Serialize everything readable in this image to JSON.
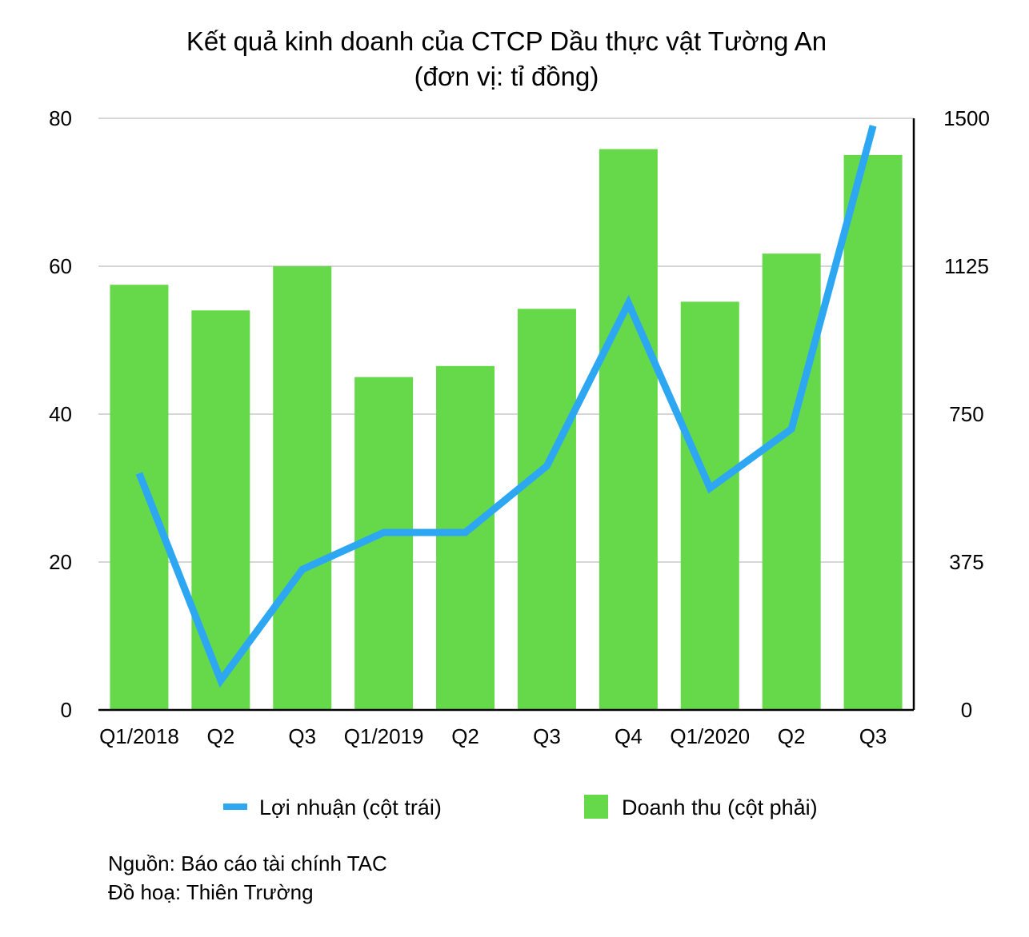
{
  "chart_data": {
    "type": "bar+line",
    "title": "Kết quả kinh doanh của CTCP Dầu thực vật Tường An",
    "subtitle": "(đơn vị: tỉ đồng)",
    "categories": [
      "Q1/2018",
      "Q2",
      "Q3",
      "Q1/2019",
      "Q2",
      "Q3",
      "Q4",
      "Q1/2020",
      "Q2",
      "Q3"
    ],
    "series": [
      {
        "name": "Lợi nhuận (cột trái)",
        "kind": "line",
        "axis": "left",
        "color": "#2ea7f2",
        "values": [
          32,
          4,
          19,
          24,
          24,
          33,
          55,
          30,
          38,
          79
        ]
      },
      {
        "name": "Doanh thu (cột phải)",
        "kind": "bar",
        "axis": "right",
        "color": "#66d94a",
        "values": [
          1078,
          1013,
          1125,
          844,
          872,
          1017,
          1422,
          1035,
          1157,
          1407
        ]
      }
    ],
    "left_axis": {
      "ylim": [
        0,
        80
      ],
      "ticks": [
        "0",
        "20",
        "40",
        "60",
        "80"
      ]
    },
    "right_axis": {
      "ylim": [
        0,
        1500
      ],
      "ticks": [
        "0",
        "375",
        "750",
        "1125",
        "1500"
      ]
    },
    "grid": true,
    "legend_position": "bottom"
  },
  "source": {
    "line1": "Nguồn: Báo cáo tài chính TAC",
    "line2": "Đồ hoạ: Thiên Trường"
  }
}
